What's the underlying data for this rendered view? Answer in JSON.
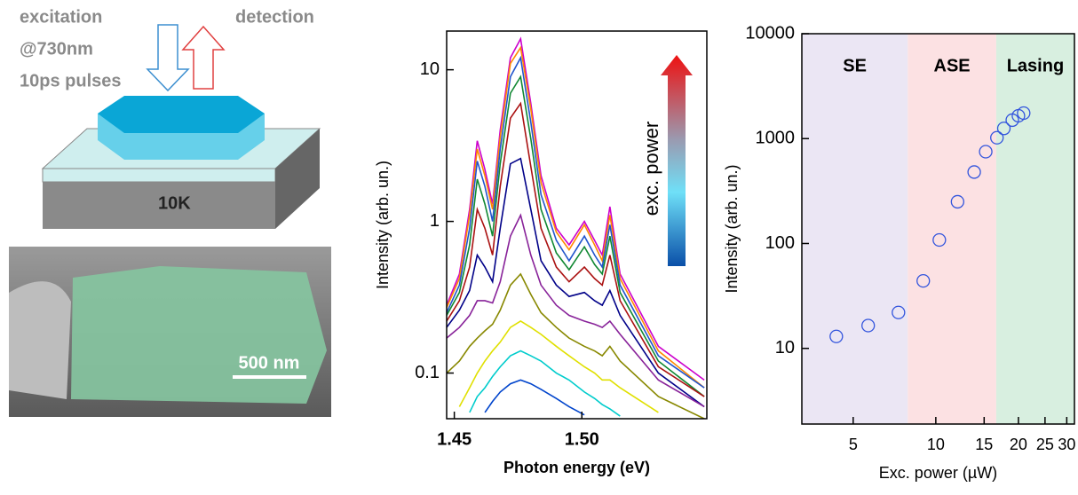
{
  "diagram": {
    "labels": [
      "excitation",
      "@730nm",
      "10ps pulses",
      "detection",
      "10K",
      "500 nm"
    ]
  },
  "chart_data": [
    {
      "type": "line",
      "xlabel": "Photon energy (eV)",
      "ylabel": "Intensity (arb. un.)",
      "annotation": "exc. power",
      "log_y": true,
      "xlim": [
        1.447,
        1.549
      ],
      "ylim": [
        0.05,
        18
      ],
      "xticks": [
        {
          "value": 1.45,
          "label": "1.45"
        },
        {
          "value": 1.5,
          "label": "1.50"
        }
      ],
      "yticks": [
        0.1,
        1,
        10
      ],
      "x": [
        1.447,
        1.452,
        1.456,
        1.459,
        1.462,
        1.465,
        1.468,
        1.472,
        1.476,
        1.48,
        1.484,
        1.49,
        1.495,
        1.501,
        1.505,
        1.508,
        1.511,
        1.515,
        1.53,
        1.548
      ],
      "series": [
        {
          "color": "#cc00cc",
          "values": [
            0.28,
            0.45,
            1.2,
            3.4,
            2.2,
            1.3,
            4.0,
            12,
            16,
            6,
            2.0,
            0.9,
            0.7,
            1.0,
            0.75,
            0.6,
            1.25,
            0.45,
            0.15,
            0.09
          ]
        },
        {
          "color": "#ff8800",
          "values": [
            0.27,
            0.42,
            1.1,
            3.0,
            2.0,
            1.2,
            3.6,
            11,
            14,
            5.5,
            1.8,
            0.85,
            0.65,
            0.95,
            0.7,
            0.55,
            1.1,
            0.42,
            0.14,
            0.08
          ]
        },
        {
          "color": "#2255cc",
          "values": [
            0.25,
            0.38,
            0.9,
            2.5,
            1.7,
            1.0,
            3.0,
            9,
            12,
            4.5,
            1.5,
            0.75,
            0.55,
            0.8,
            0.6,
            0.5,
            0.95,
            0.38,
            0.13,
            0.08
          ]
        },
        {
          "color": "#118833",
          "values": [
            0.24,
            0.34,
            0.7,
            1.9,
            1.3,
            0.8,
            2.4,
            7,
            9,
            3.5,
            1.2,
            0.62,
            0.48,
            0.68,
            0.52,
            0.45,
            0.8,
            0.34,
            0.12,
            0.07
          ]
        },
        {
          "color": "#aa1111",
          "values": [
            0.22,
            0.3,
            0.5,
            1.2,
            0.9,
            0.6,
            1.7,
            4.8,
            6,
            2.3,
            0.9,
            0.5,
            0.4,
            0.5,
            0.42,
            0.38,
            0.6,
            0.3,
            0.11,
            0.07
          ]
        },
        {
          "color": "#000088",
          "values": [
            0.2,
            0.26,
            0.35,
            0.6,
            0.5,
            0.4,
            0.9,
            2.4,
            2.6,
            1.2,
            0.55,
            0.38,
            0.32,
            0.34,
            0.3,
            0.28,
            0.35,
            0.24,
            0.1,
            0.06
          ]
        },
        {
          "color": "#882299",
          "values": [
            0.17,
            0.2,
            0.24,
            0.3,
            0.3,
            0.29,
            0.4,
            0.8,
            1.1,
            0.6,
            0.38,
            0.28,
            0.24,
            0.22,
            0.21,
            0.2,
            0.22,
            0.18,
            0.09,
            0.06
          ]
        },
        {
          "color": "#888800",
          "values": [
            0.1,
            0.12,
            0.15,
            0.17,
            0.19,
            0.21,
            0.26,
            0.38,
            0.45,
            0.33,
            0.25,
            0.2,
            0.17,
            0.15,
            0.14,
            0.13,
            0.15,
            0.12,
            0.07,
            0.05
          ]
        },
        {
          "color": "#e0e000",
          "values": [
            null,
            0.06,
            0.08,
            0.1,
            0.12,
            0.14,
            0.16,
            0.2,
            0.22,
            0.2,
            0.18,
            0.15,
            0.13,
            0.11,
            0.1,
            0.09,
            0.09,
            0.08,
            0.055,
            null
          ]
        },
        {
          "color": "#00cccc",
          "values": [
            null,
            null,
            0.055,
            0.07,
            0.08,
            0.095,
            0.11,
            0.13,
            0.14,
            0.13,
            0.12,
            0.1,
            0.09,
            0.075,
            0.068,
            0.062,
            0.058,
            0.052,
            null,
            null
          ]
        },
        {
          "color": "#0044cc",
          "values": [
            null,
            null,
            null,
            null,
            0.055,
            0.065,
            0.075,
            0.085,
            0.09,
            0.085,
            0.078,
            0.068,
            0.06,
            0.053,
            null,
            null,
            null,
            null,
            null,
            null
          ]
        }
      ]
    },
    {
      "type": "scatter",
      "xlabel": "Exc. power (µW)",
      "ylabel": "Intensity (arb. un.)",
      "log_x": true,
      "log_y": true,
      "xlim": [
        3.25,
        32
      ],
      "ylim": [
        1.9,
        10000
      ],
      "xticks": [
        5,
        10,
        15,
        20,
        25,
        30
      ],
      "yticks": [
        10,
        100,
        1000,
        10000
      ],
      "color": "#3355dd",
      "regions": [
        {
          "label": "SE",
          "from": 3.25,
          "to": 7.9,
          "color": "#ebe6f4"
        },
        {
          "label": "ASE",
          "from": 7.9,
          "to": 16.6,
          "color": "#fce1e3"
        },
        {
          "label": "Lasing",
          "from": 16.6,
          "to": 32,
          "color": "#d8efe0"
        }
      ],
      "x": [
        4.34,
        5.67,
        7.31,
        9.0,
        10.3,
        12.0,
        13.8,
        15.2,
        16.7,
        17.7,
        19.0,
        20.0,
        20.9
      ],
      "values": [
        13,
        16.5,
        22,
        44,
        108,
        250,
        480,
        750,
        1020,
        1250,
        1500,
        1650,
        1750
      ]
    }
  ]
}
